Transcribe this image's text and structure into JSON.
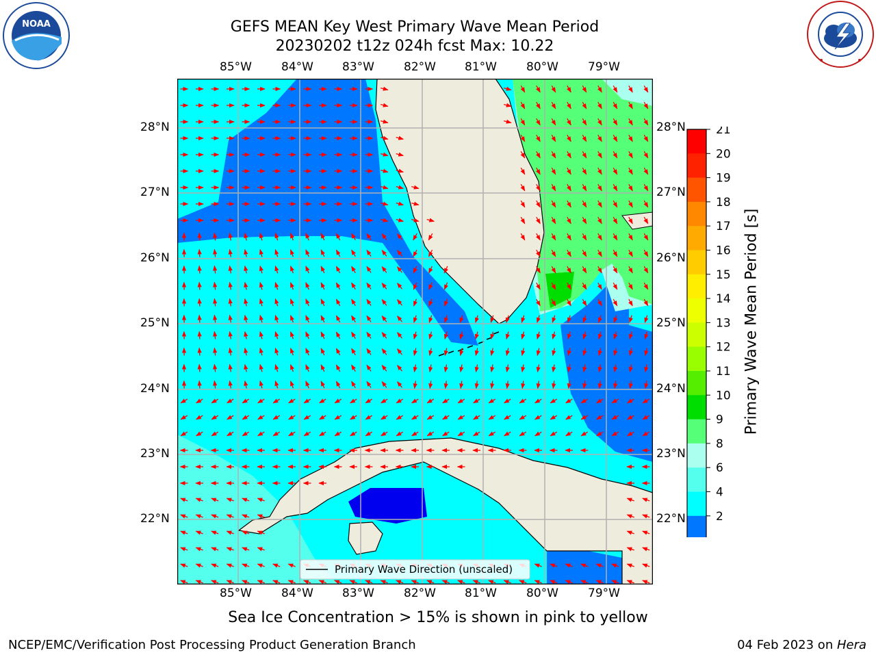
{
  "header": {
    "title_line1": "GEFS MEAN Key West Primary Wave Mean Period",
    "title_line2": "20230202 t12z 024h fcst   Max: 10.22"
  },
  "logos": {
    "left": "NOAA",
    "left_ring": "NATIONAL OCEANIC AND ATMOSPHERIC ADMINISTRATION · U.S. DEPARTMENT OF COMMERCE",
    "right_ring": "NATIONAL WEATHER SERVICE"
  },
  "map": {
    "lon_labels": [
      "85°W",
      "84°W",
      "83°W",
      "82°W",
      "81°W",
      "80°W",
      "79°W"
    ],
    "lat_labels": [
      "28°N",
      "27°N",
      "26°N",
      "25°N",
      "24°N",
      "23°N",
      "22°N"
    ],
    "legend_label": "Primary Wave Direction (unscaled)",
    "field": "Primary Wave Mean Period"
  },
  "colorbar": {
    "label": "Primary Wave Mean Period [s]",
    "ticks": [
      "21",
      "20",
      "19",
      "18",
      "17",
      "16",
      "15",
      "14",
      "13",
      "12",
      "11",
      "10",
      "9",
      "8",
      "6",
      "4",
      "2"
    ],
    "colors": [
      "#ff0000",
      "#ff2200",
      "#ff5500",
      "#ff8800",
      "#ffaa00",
      "#ffcc00",
      "#ffee00",
      "#eeff00",
      "#ccff00",
      "#99ff00",
      "#55ee00",
      "#00dd00",
      "#55ff77",
      "#aaffee",
      "#55ffee",
      "#00ffff",
      "#0077ff"
    ],
    "under_color": "#0000ee"
  },
  "note": "Sea Ice Concentration > 15% is shown in pink to yellow",
  "footer": {
    "left": "NCEP/EMC/Verification Post Processing Product Generation Branch",
    "date": "04 Feb 2023 on ",
    "machine": "Hera"
  }
}
